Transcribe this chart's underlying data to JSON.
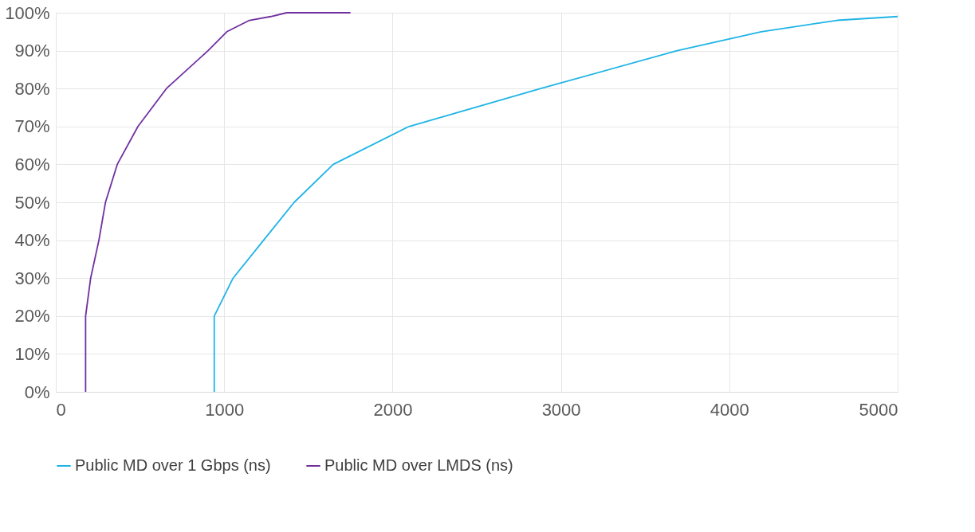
{
  "chart_data": {
    "type": "line",
    "legend": "bottom",
    "grid": true,
    "line_style": "solid",
    "marker": "none",
    "xlim": [
      0,
      5000
    ],
    "xticks": [
      0,
      1000,
      2000,
      3000,
      4000,
      5000
    ],
    "ylim": [
      0,
      100
    ],
    "yticks": [
      {
        "value": 0,
        "label": "0%"
      },
      {
        "value": 10,
        "label": "10%"
      },
      {
        "value": 20,
        "label": "20%"
      },
      {
        "value": 30,
        "label": "30%"
      },
      {
        "value": 40,
        "label": "40%"
      },
      {
        "value": 50,
        "label": "50%"
      },
      {
        "value": 60,
        "label": "60%"
      },
      {
        "value": 70,
        "label": "70%"
      },
      {
        "value": 80,
        "label": "80%"
      },
      {
        "value": 90,
        "label": "90%"
      },
      {
        "value": 100,
        "label": "100%"
      }
    ],
    "series": [
      {
        "name": "Public MD over 1 Gbps (ns)",
        "color": "#1fb4e6",
        "x": [
          941,
          941,
          1053,
          1234,
          1416,
          1648,
          2098,
          2880,
          3690,
          4190,
          4640,
          5000
        ],
        "values": [
          0,
          20,
          30,
          40,
          50,
          60,
          70,
          80,
          90,
          95,
          98,
          99
        ]
      },
      {
        "name": "Public MD over LMDS (ns)",
        "color": "#7030a0",
        "x": [
          177,
          177,
          207,
          256,
          295,
          365,
          488,
          657,
          904,
          1016,
          1150,
          1277,
          1371,
          1750
        ],
        "values": [
          0,
          20,
          30,
          40,
          50,
          60,
          70,
          80,
          90,
          95,
          98,
          99,
          100,
          100
        ]
      }
    ]
  }
}
